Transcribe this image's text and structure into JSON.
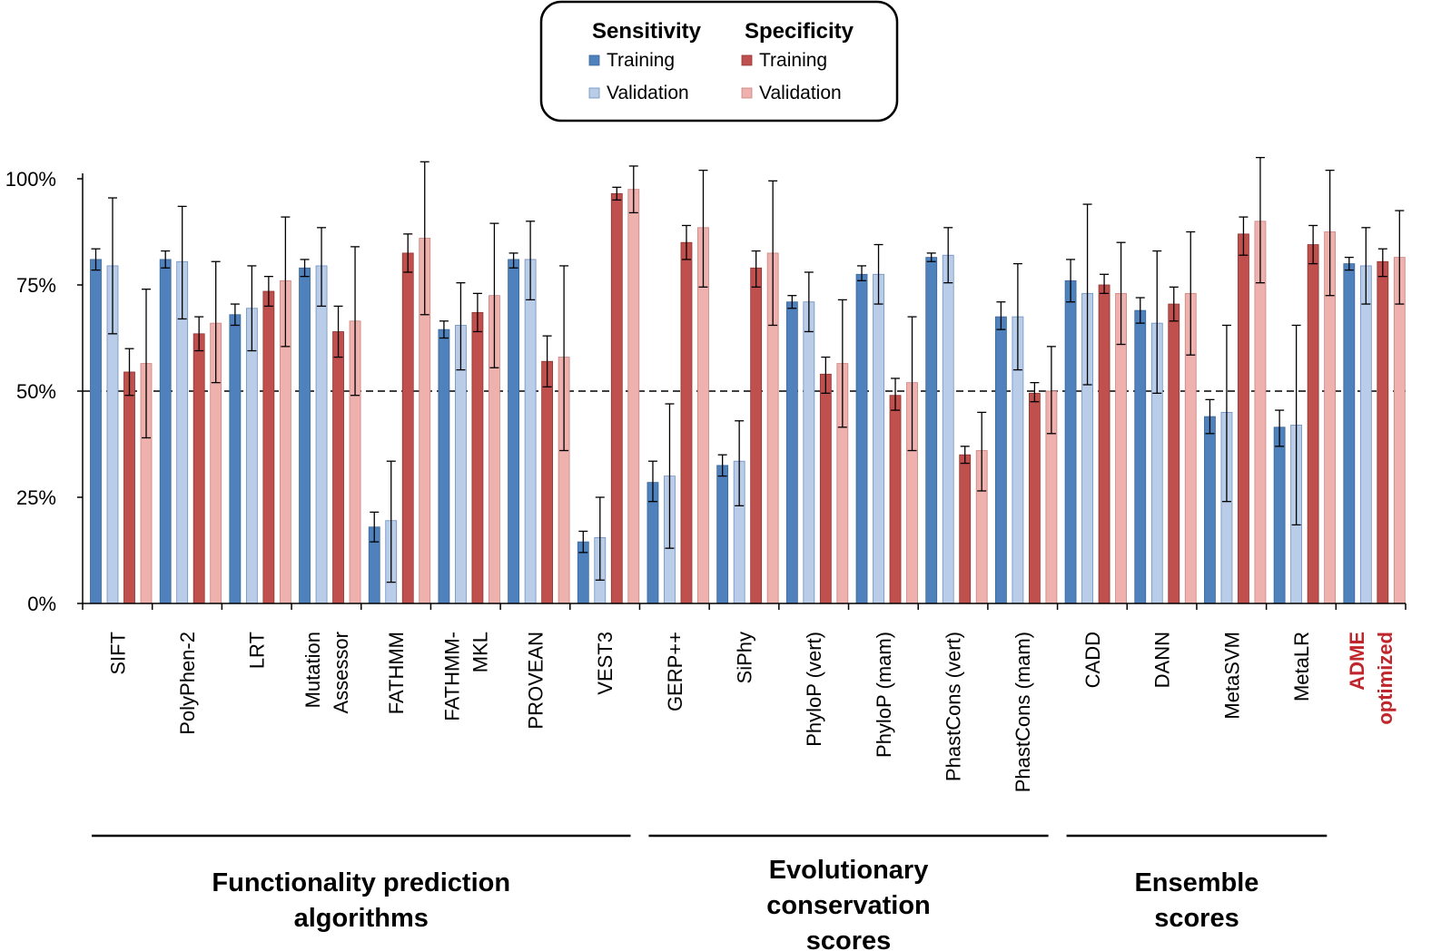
{
  "chart_data": {
    "type": "bar",
    "legend": {
      "position": "top-center",
      "groups": [
        {
          "title": "Sensitivity",
          "entries": [
            {
              "series": "sens_train",
              "label": "Training"
            },
            {
              "series": "sens_val",
              "label": "Validation"
            }
          ]
        },
        {
          "title": "Specificity",
          "entries": [
            {
              "series": "spec_train",
              "label": "Training"
            },
            {
              "series": "spec_val",
              "label": "Validation"
            }
          ]
        }
      ]
    },
    "colors": {
      "sens_train": "#4f81bd",
      "sens_val": "#b9cde9",
      "spec_train": "#c0504d",
      "spec_val": "#eeb1ae",
      "sens_train_edge": "#3a6596",
      "sens_val_edge": "#6f8fc0",
      "spec_train_edge": "#8f3431",
      "spec_val_edge": "#c98480",
      "highlight_label": "#c0272d"
    },
    "ylim": [
      0,
      100
    ],
    "yticks": [
      "0%",
      "25%",
      "50%",
      "75%",
      "100%"
    ],
    "ytick_values": [
      0,
      25,
      50,
      75,
      100
    ],
    "reference_line": 50,
    "series_order": [
      "sens_train",
      "sens_val",
      "spec_train",
      "spec_val"
    ],
    "categories": [
      {
        "label": [
          "SIFT"
        ],
        "values": [
          81,
          79.5,
          54.5,
          56.5
        ],
        "errors": [
          [
            78.5,
            83.5
          ],
          [
            63.5,
            95.5
          ],
          [
            49,
            60
          ],
          [
            39,
            74
          ]
        ]
      },
      {
        "label": [
          "PolyPhen-2"
        ],
        "values": [
          81,
          80.5,
          63.5,
          66
        ],
        "errors": [
          [
            79,
            83
          ],
          [
            67,
            93.5
          ],
          [
            59.5,
            67.5
          ],
          [
            52,
            80.5
          ]
        ]
      },
      {
        "label": [
          "LRT"
        ],
        "values": [
          68,
          69.5,
          73.5,
          76
        ],
        "errors": [
          [
            65.5,
            70.5
          ],
          [
            59.5,
            79.5
          ],
          [
            70,
            77
          ],
          [
            60.5,
            91
          ]
        ]
      },
      {
        "label": [
          "Mutation",
          "Assessor"
        ],
        "values": [
          79,
          79.5,
          64,
          66.5
        ],
        "errors": [
          [
            77,
            81
          ],
          [
            70,
            88.5
          ],
          [
            58,
            70
          ],
          [
            49,
            84
          ]
        ]
      },
      {
        "label": [
          "FATHMM"
        ],
        "values": [
          18,
          19.5,
          82.5,
          86
        ],
        "errors": [
          [
            14.5,
            21.5
          ],
          [
            5,
            33.5
          ],
          [
            78,
            87
          ],
          [
            68,
            104
          ]
        ]
      },
      {
        "label": [
          "FATHMM-",
          "MKL"
        ],
        "values": [
          64.5,
          65.5,
          68.5,
          72.5
        ],
        "errors": [
          [
            62.5,
            66.5
          ],
          [
            55,
            75.5
          ],
          [
            64,
            73
          ],
          [
            55.5,
            89.5
          ]
        ]
      },
      {
        "label": [
          "PROVEAN"
        ],
        "values": [
          81,
          81,
          57,
          58
        ],
        "errors": [
          [
            79,
            82.5
          ],
          [
            71.5,
            90
          ],
          [
            51,
            63
          ],
          [
            36,
            79.5
          ]
        ]
      },
      {
        "label": [
          "VEST3"
        ],
        "values": [
          14.5,
          15.5,
          96.5,
          97.5
        ],
        "errors": [
          [
            12,
            17
          ],
          [
            5.5,
            25
          ],
          [
            95,
            98
          ],
          [
            92,
            103
          ]
        ]
      },
      {
        "label": [
          "GERP++"
        ],
        "values": [
          28.5,
          30,
          85,
          88.5
        ],
        "errors": [
          [
            24,
            33.5
          ],
          [
            13,
            47
          ],
          [
            81,
            89
          ],
          [
            74.5,
            102
          ]
        ]
      },
      {
        "label": [
          "SiPhy"
        ],
        "values": [
          32.5,
          33.5,
          79,
          82.5
        ],
        "errors": [
          [
            30,
            35
          ],
          [
            23,
            43
          ],
          [
            74.5,
            83
          ],
          [
            65.5,
            99.5
          ]
        ]
      },
      {
        "label": [
          "PhyloP (vert)"
        ],
        "values": [
          71,
          71,
          54,
          56.5
        ],
        "errors": [
          [
            69.5,
            72.5
          ],
          [
            64,
            78
          ],
          [
            49.5,
            58
          ],
          [
            41.5,
            71.5
          ]
        ]
      },
      {
        "label": [
          "PhyloP (mam)"
        ],
        "values": [
          77.5,
          77.5,
          49,
          52
        ],
        "errors": [
          [
            76,
            79.5
          ],
          [
            70.5,
            84.5
          ],
          [
            45.5,
            53
          ],
          [
            36,
            67.5
          ]
        ]
      },
      {
        "label": [
          "PhastCons (vert)"
        ],
        "values": [
          81.5,
          82,
          35,
          36
        ],
        "errors": [
          [
            80.5,
            82.5
          ],
          [
            75.5,
            88.5
          ],
          [
            33,
            37
          ],
          [
            26.5,
            45
          ]
        ]
      },
      {
        "label": [
          "PhastCons (mam)"
        ],
        "values": [
          67.5,
          67.5,
          49.5,
          50
        ],
        "errors": [
          [
            64.5,
            71
          ],
          [
            55,
            80
          ],
          [
            47.5,
            52
          ],
          [
            40,
            60.5
          ]
        ]
      },
      {
        "label": [
          "CADD"
        ],
        "values": [
          76,
          73,
          75,
          73
        ],
        "errors": [
          [
            71,
            81
          ],
          [
            51.5,
            94
          ],
          [
            73,
            77.5
          ],
          [
            61,
            85
          ]
        ]
      },
      {
        "label": [
          "DANN"
        ],
        "values": [
          69,
          66,
          70.5,
          73
        ],
        "errors": [
          [
            66,
            72
          ],
          [
            49.5,
            83
          ],
          [
            66.5,
            74.5
          ],
          [
            58.5,
            87.5
          ]
        ]
      },
      {
        "label": [
          "MetaSVM"
        ],
        "values": [
          44,
          45,
          87,
          90
        ],
        "errors": [
          [
            40,
            48
          ],
          [
            24,
            65.5
          ],
          [
            82,
            91
          ],
          [
            75.5,
            105
          ]
        ]
      },
      {
        "label": [
          "MetaLR"
        ],
        "values": [
          41.5,
          42,
          84.5,
          87.5
        ],
        "errors": [
          [
            37,
            45.5
          ],
          [
            18.5,
            65.5
          ],
          [
            80,
            89
          ],
          [
            72.5,
            102
          ]
        ]
      },
      {
        "label": [
          "ADME",
          "optimized"
        ],
        "highlight": true,
        "values": [
          80,
          79.5,
          80.5,
          81.5
        ],
        "errors": [
          [
            78.5,
            81.5
          ],
          [
            70.5,
            88.5
          ],
          [
            77,
            83.5
          ],
          [
            70.5,
            92.5
          ]
        ]
      }
    ],
    "groups": [
      {
        "lines": [
          "Functionality prediction",
          "algorithms"
        ],
        "first_category": 0,
        "last_category": 7
      },
      {
        "lines": [
          "Evolutionary",
          "conservation",
          "scores"
        ],
        "first_category": 8,
        "last_category": 13
      },
      {
        "lines": [
          "Ensemble",
          "scores"
        ],
        "first_category": 14,
        "last_category": 17
      }
    ]
  }
}
